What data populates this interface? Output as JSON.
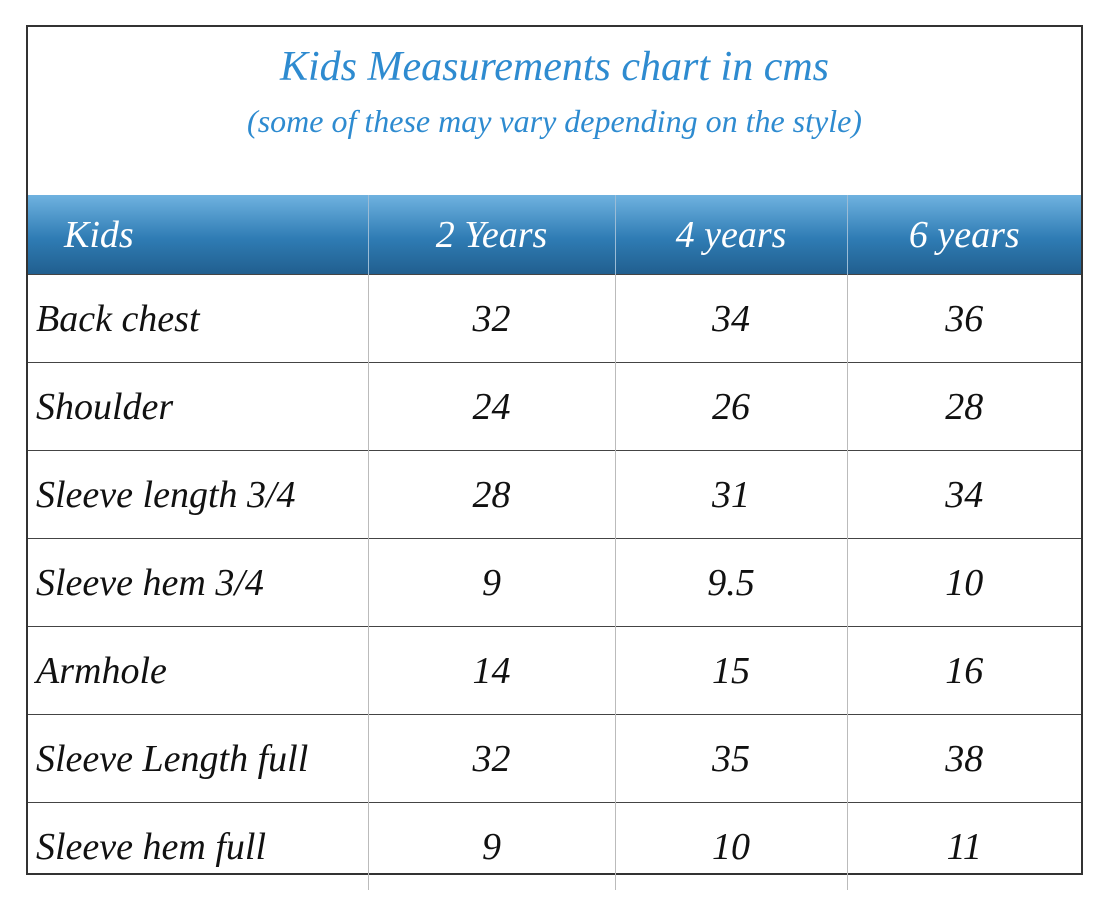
{
  "header": {
    "title": "Kids Measurements chart in cms",
    "subtitle": "(some of these may vary depending on the style)"
  },
  "table": {
    "columns": [
      "Kids",
      "2 Years",
      "4 years",
      "6 years"
    ],
    "rows": [
      [
        "Back chest",
        32,
        34,
        36
      ],
      [
        "Shoulder",
        24,
        26,
        28
      ],
      [
        "Sleeve length 3/4",
        28,
        31,
        34
      ],
      [
        "Sleeve hem 3/4",
        9,
        9.5,
        10
      ],
      [
        "Armhole",
        14,
        15,
        16
      ],
      [
        "Sleeve Length full",
        32,
        35,
        38
      ],
      [
        "Sleeve hem full",
        9,
        10,
        11
      ]
    ]
  }
}
